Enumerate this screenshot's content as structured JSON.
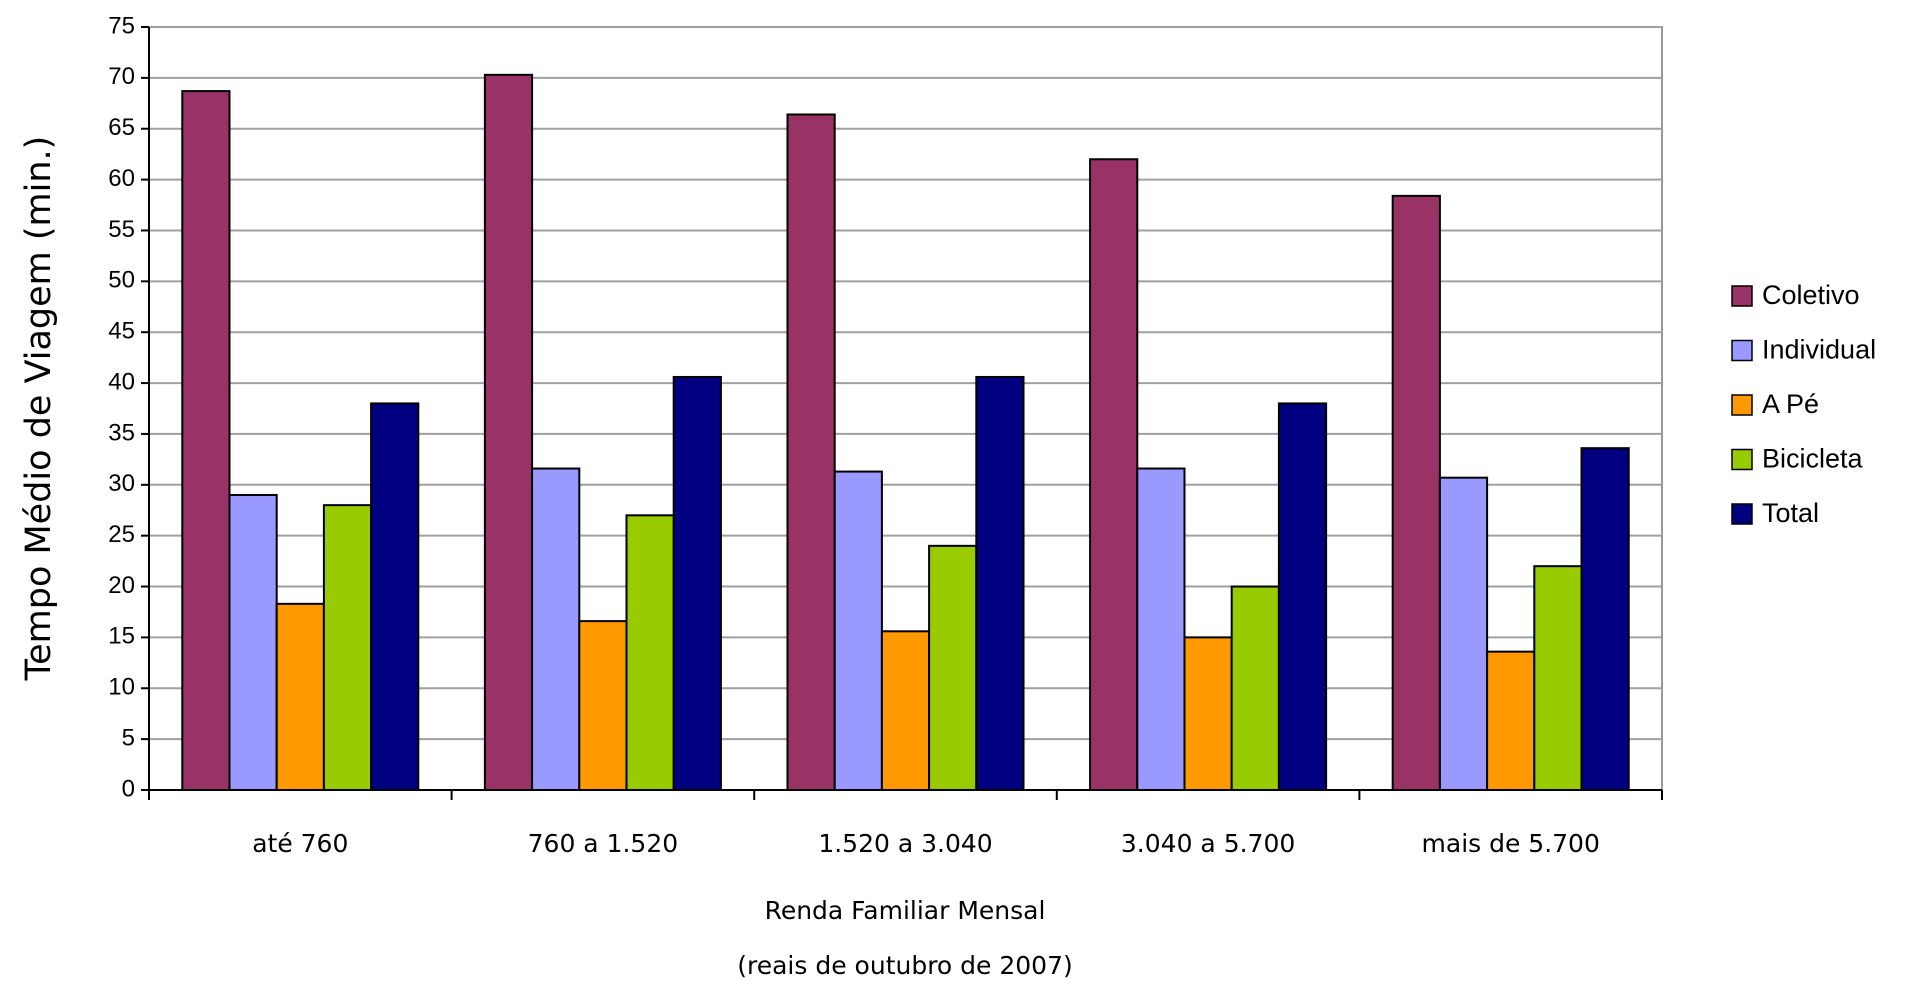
{
  "chart_data": {
    "type": "bar",
    "x_label": "Renda Familiar Mensal",
    "x_label_2": "(reais de outubro de 2007)",
    "y_label": "Tempo Médio de Viagem (min.)",
    "categories": [
      "até 760",
      "760 a 1.520",
      "1.520 a 3.040",
      "3.040 a 5.700",
      "mais de 5.700"
    ],
    "series": [
      {
        "name": "Coletivo",
        "color": "#993366",
        "values": [
          68.7,
          70.3,
          66.4,
          62,
          58.4
        ]
      },
      {
        "name": "Individual",
        "color": "#9999ff",
        "values": [
          29,
          31.6,
          31.3,
          31.6,
          30.7
        ]
      },
      {
        "name": "A Pé",
        "color": "#ff9900",
        "values": [
          18.3,
          16.6,
          15.6,
          15,
          13.6
        ]
      },
      {
        "name": "Bicicleta",
        "color": "#99cc00",
        "values": [
          28,
          27,
          24,
          20,
          22
        ]
      },
      {
        "name": "Total",
        "color": "#000080",
        "values": [
          38,
          40.6,
          40.6,
          38,
          33.6
        ]
      }
    ],
    "ylim": [
      0,
      75
    ],
    "yticks": [
      0,
      5,
      10,
      15,
      20,
      25,
      30,
      35,
      40,
      45,
      50,
      55,
      60,
      65,
      70,
      75
    ],
    "grid": true,
    "legend": "right"
  }
}
